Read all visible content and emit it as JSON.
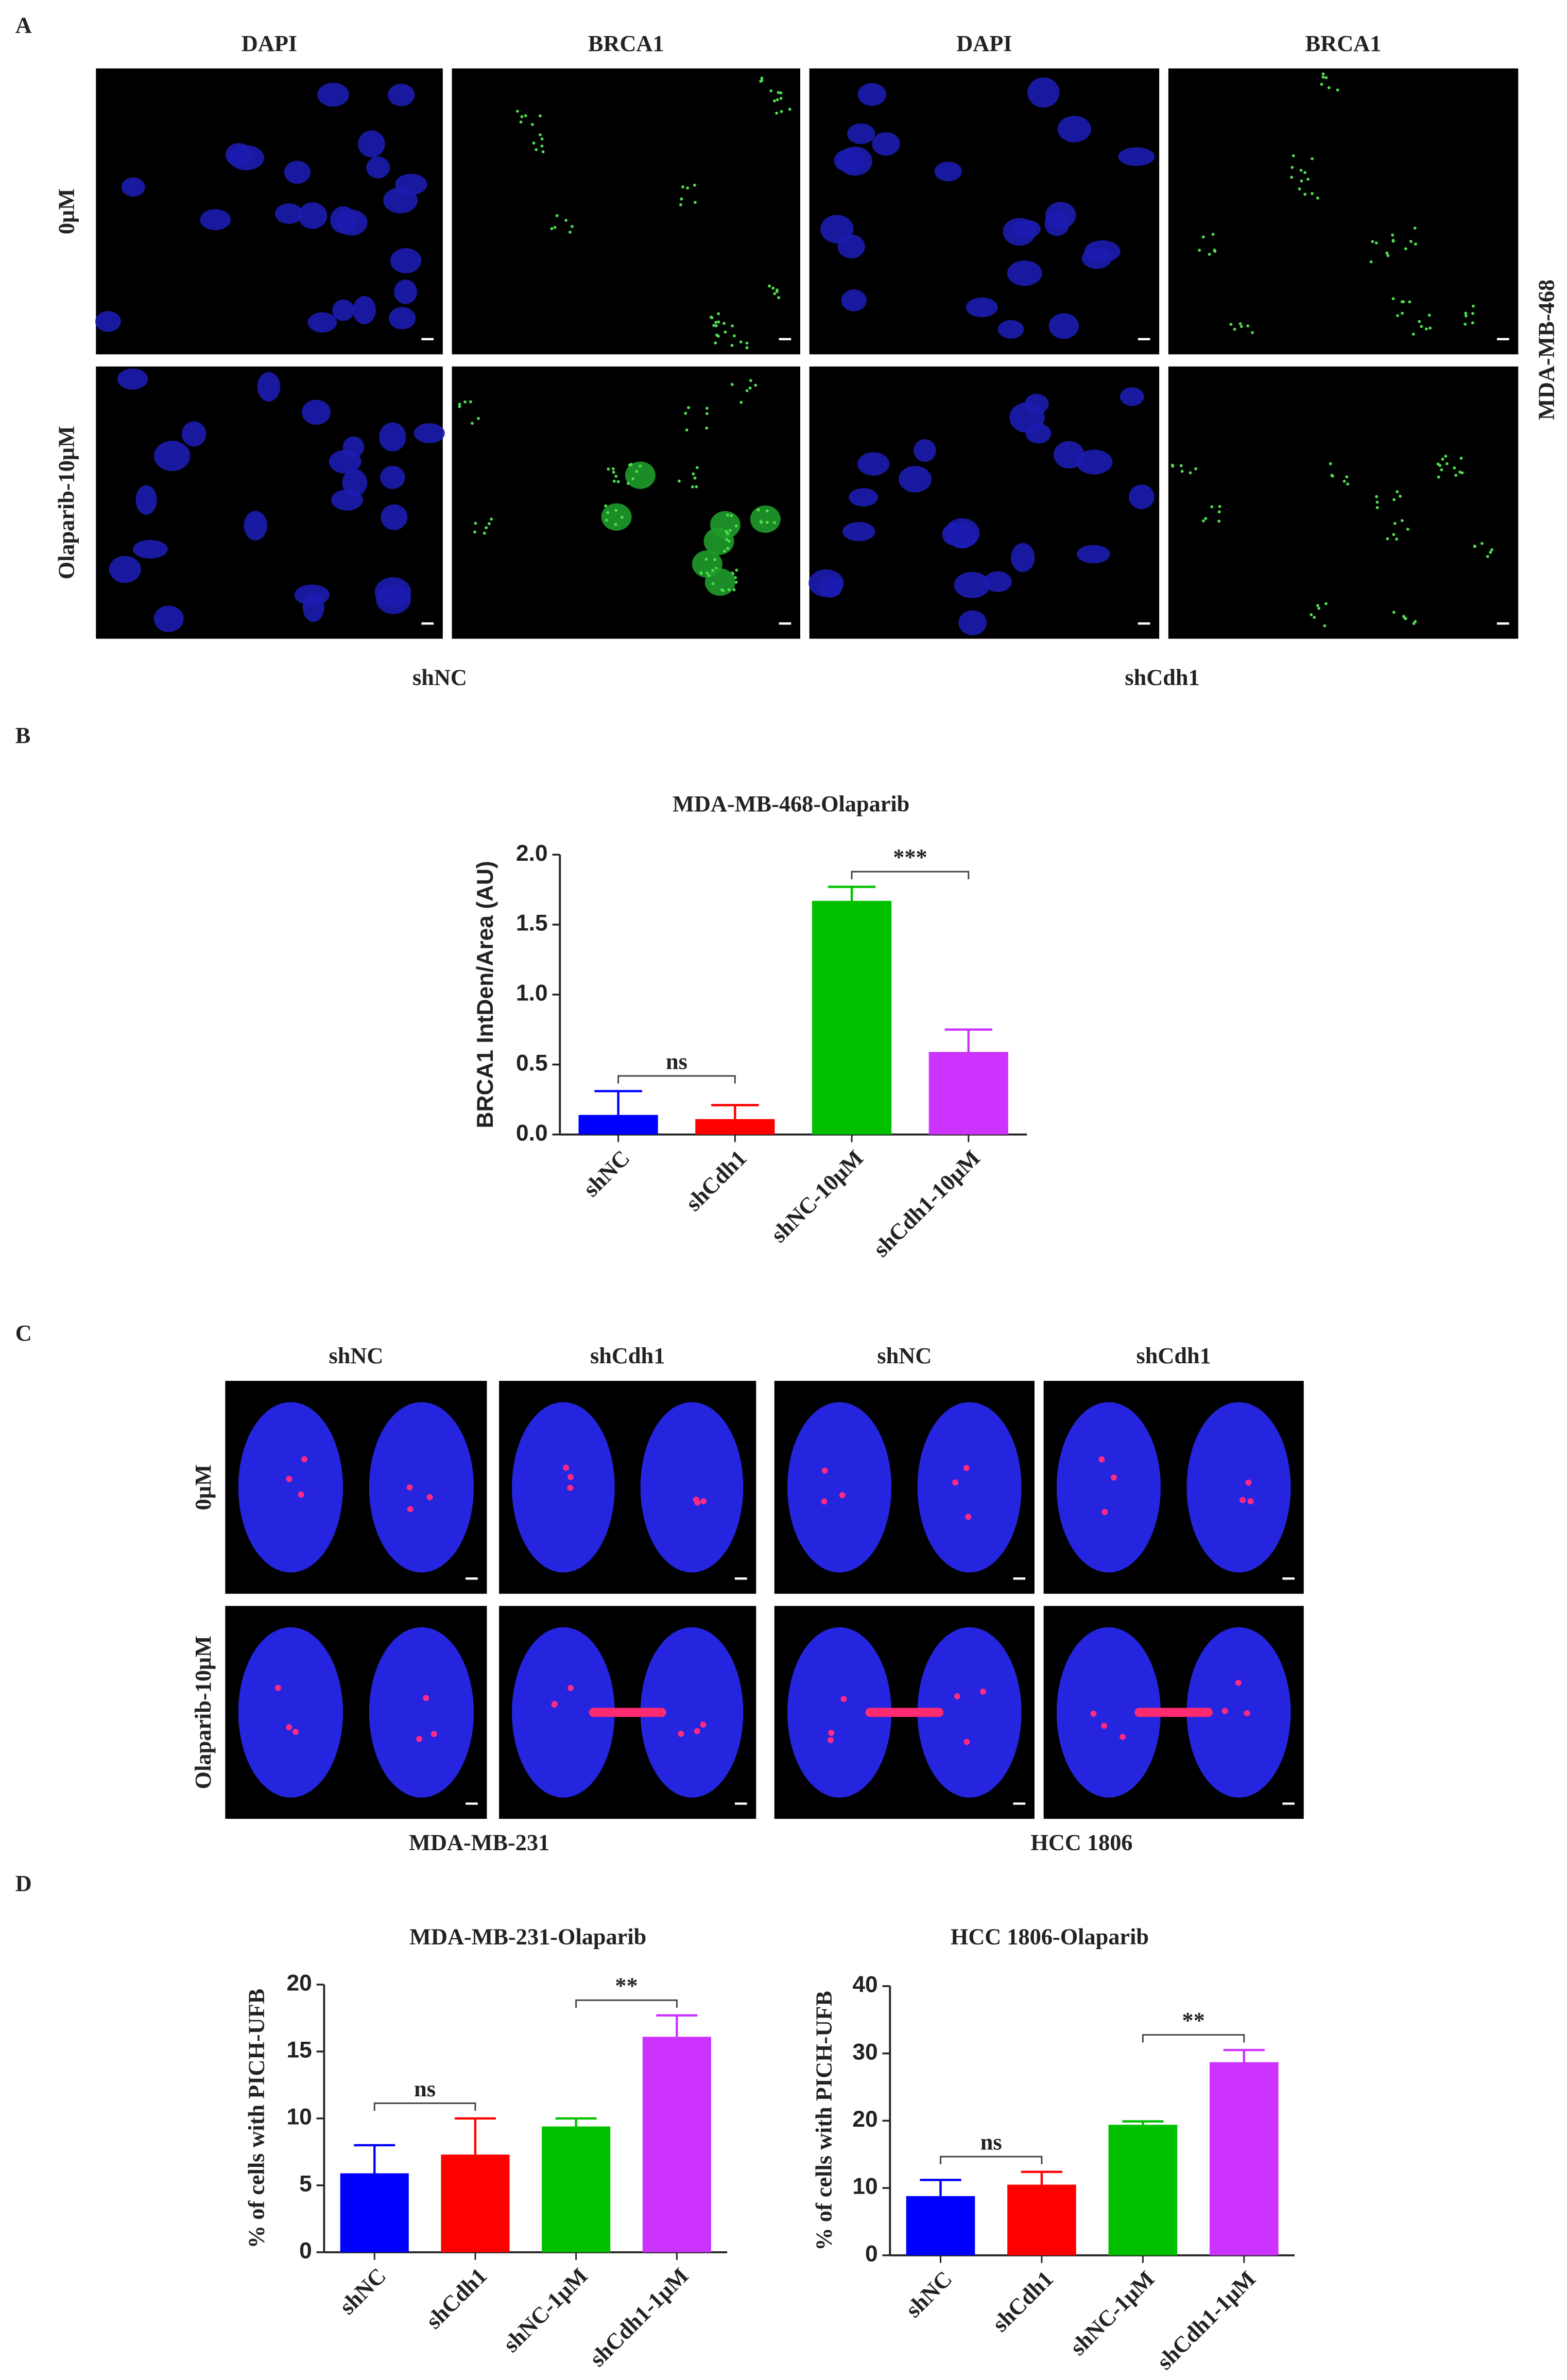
{
  "panel_labels": [
    "A",
    "B",
    "C",
    "D"
  ],
  "panel_a": {
    "column_labels": [
      "DAPI",
      "BRCA1",
      "DAPI",
      "BRCA1"
    ],
    "row_labels": [
      "0μM",
      "Olaparib-10μM"
    ],
    "group_labels": [
      "shNC",
      "shCdh1"
    ],
    "side_label": "MDA-MB-468"
  },
  "panel_c": {
    "column_labels": [
      "shNC",
      "shCdh1",
      "shNC",
      "shCdh1"
    ],
    "row_labels": [
      "0μM",
      "Olaparib-10μM"
    ],
    "group_labels": [
      "MDA-MB-231",
      "HCC 1806"
    ]
  },
  "chart_data": [
    {
      "type": "bar",
      "title": "MDA-MB-468-Olaparib",
      "y_label": "BRCA1 IntDen/Area (AU)",
      "categories": [
        "shNC",
        "shCdh1",
        "shNC-10μM",
        "shCdh1-10μM"
      ],
      "values": [
        0.14,
        0.11,
        1.67,
        0.59
      ],
      "errors": [
        0.17,
        0.1,
        0.1,
        0.16
      ],
      "colors": [
        "#0000ff",
        "#ff0000",
        "#00c000",
        "#cc33ff"
      ],
      "ylim": [
        0,
        2
      ],
      "yticks": [
        {
          "value": 0,
          "label": "0.0"
        },
        {
          "value": 0.5,
          "label": "0.5"
        },
        {
          "value": 1,
          "label": "1.0"
        },
        {
          "value": 1.5,
          "label": "1.5"
        },
        {
          "value": 2,
          "label": "2.0"
        }
      ],
      "annotations": [
        {
          "text": "ns",
          "between": [
            0,
            1
          ]
        },
        {
          "text": "***",
          "between": [
            2,
            3
          ]
        }
      ]
    },
    {
      "type": "bar",
      "title": "MDA-MB-231-Olaparib",
      "y_label": "% of cells with PICH-UFB",
      "categories": [
        "shNC",
        "shCdh1",
        "shNC-1μM",
        "shCdh1-1μM"
      ],
      "values": [
        5.9,
        7.3,
        9.4,
        16.1
      ],
      "errors": [
        2.1,
        2.7,
        0.6,
        1.6
      ],
      "colors": [
        "#0000ff",
        "#ff0000",
        "#00c000",
        "#cc33ff"
      ],
      "ylim": [
        0,
        20
      ],
      "yticks": [
        0,
        5,
        10,
        15,
        20
      ],
      "annotations": [
        {
          "text": "ns",
          "between": [
            0,
            1
          ]
        },
        {
          "text": "**",
          "between": [
            2,
            3
          ]
        }
      ]
    },
    {
      "type": "bar",
      "title": "HCC 1806-Olaparib",
      "y_label": "% of cells with PICH-UFB",
      "categories": [
        "shNC",
        "shCdh1",
        "shNC-1μM",
        "shCdh1-1μM"
      ],
      "values": [
        8.8,
        10.5,
        19.4,
        28.7
      ],
      "errors": [
        2.4,
        1.9,
        0.5,
        1.8
      ],
      "colors": [
        "#0000ff",
        "#ff0000",
        "#00c000",
        "#cc33ff"
      ],
      "ylim": [
        0,
        40
      ],
      "yticks": [
        0,
        10,
        20,
        30,
        40
      ],
      "annotations": [
        {
          "text": "ns",
          "between": [
            0,
            1
          ]
        },
        {
          "text": "**",
          "between": [
            2,
            3
          ]
        }
      ]
    }
  ]
}
